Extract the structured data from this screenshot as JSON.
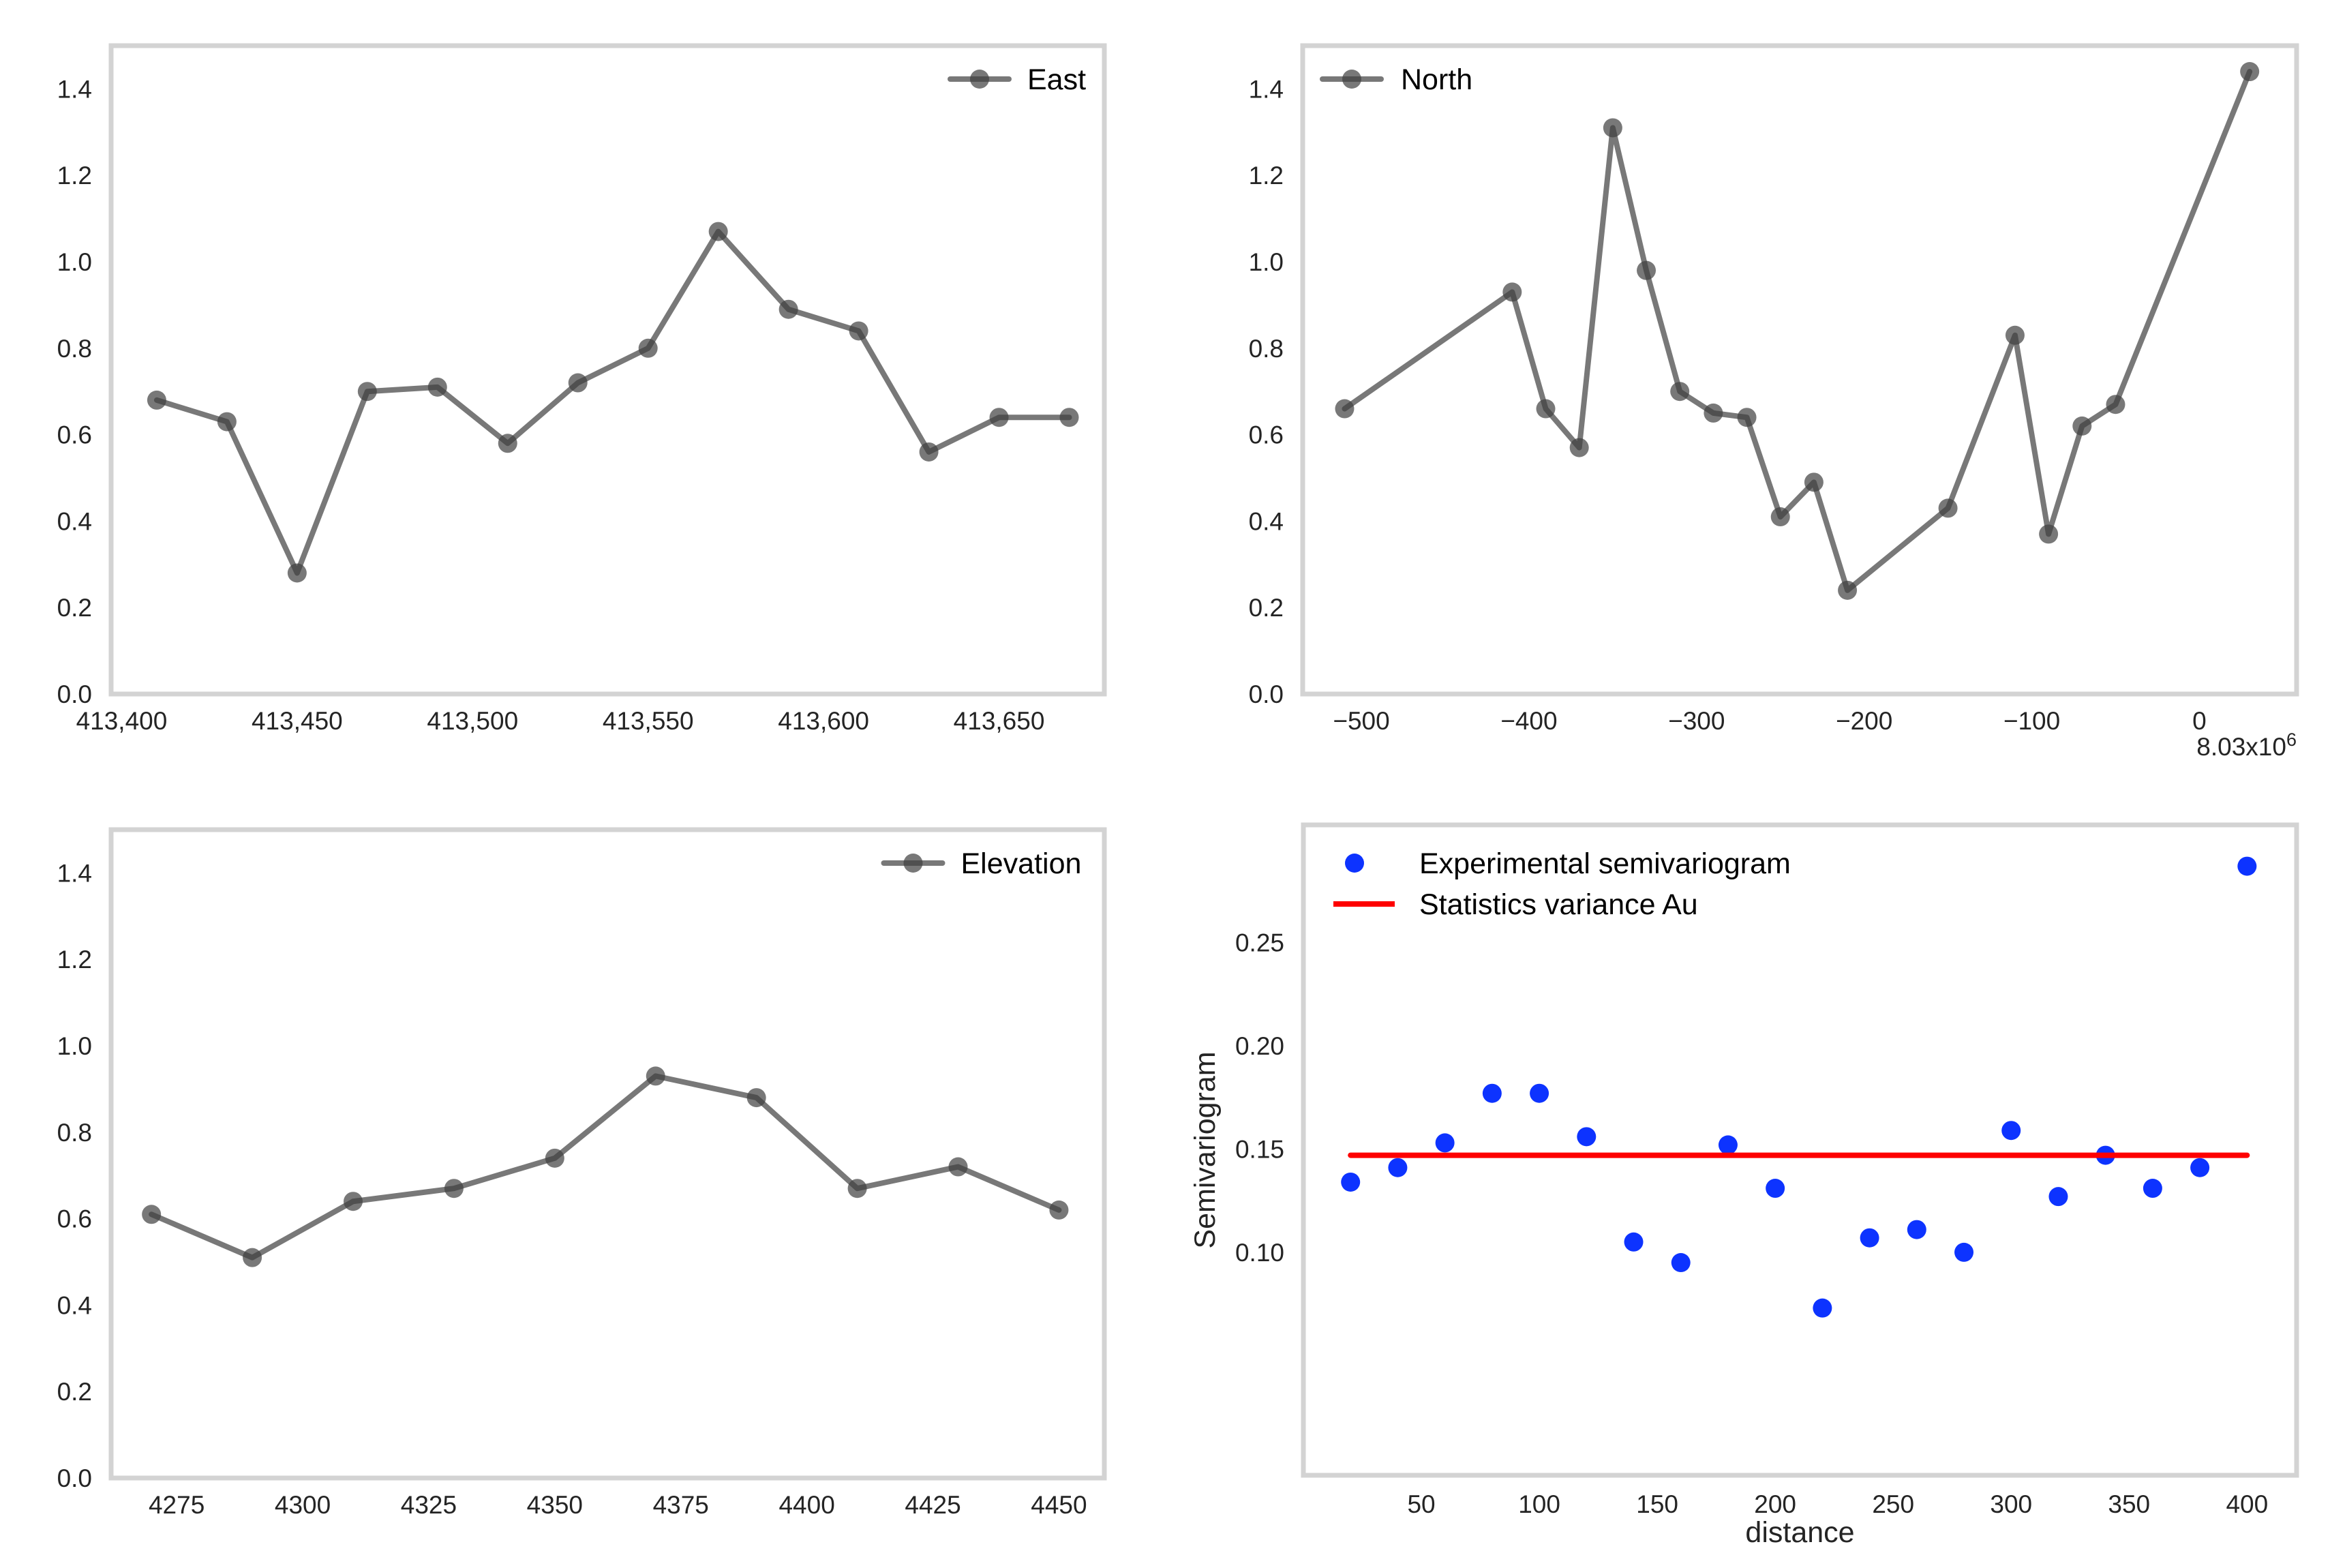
{
  "page": {
    "background": "#ffffff",
    "title": "",
    "grid_rows": 2,
    "grid_cols": 2
  },
  "styles": {
    "plot_border_color": "#d3d3d3",
    "tick_label_color": "#242424",
    "axis_label_color": "#242424",
    "legend_text_color": "#000000",
    "gray_series_color": "#3f3f3f",
    "scatter_point_color": "#0d33ff",
    "variance_line_color": "#fe0000"
  },
  "chart_data": [
    {
      "id": "east",
      "type": "line",
      "title": "",
      "xlabel": "",
      "ylabel": "",
      "legend": [
        {
          "label": "East",
          "swatch": "line-marker",
          "color": "#3f3f3f"
        }
      ],
      "legend_position": "top-right",
      "grid": false,
      "xlim": [
        413397,
        413680
      ],
      "ylim": [
        0,
        1.5
      ],
      "xticks": {
        "values": [
          413400,
          413450,
          413500,
          413550,
          413600,
          413650
        ],
        "labels": [
          "413,400",
          "413,450",
          "413,500",
          "413,550",
          "413,600",
          "413,650"
        ]
      },
      "yticks": {
        "values": [
          0.0,
          0.2,
          0.4,
          0.6,
          0.8,
          1.0,
          1.2,
          1.4
        ],
        "labels": [
          "0.0",
          "0.2",
          "0.4",
          "0.6",
          "0.8",
          "1.0",
          "1.2",
          "1.4"
        ]
      },
      "x": [
        413410,
        413430,
        413450,
        413470,
        413490,
        413510,
        413530,
        413550,
        413570,
        413590,
        413610,
        413630,
        413650,
        413670
      ],
      "y": [
        0.68,
        0.63,
        0.28,
        0.7,
        0.71,
        0.58,
        0.72,
        0.8,
        1.07,
        0.89,
        0.84,
        0.56,
        0.64,
        0.64
      ]
    },
    {
      "id": "north",
      "type": "line",
      "title": "",
      "xlabel": "",
      "ylabel": "",
      "legend": [
        {
          "label": "North",
          "swatch": "line-marker",
          "color": "#3f3f3f"
        }
      ],
      "legend_position": "top-left",
      "grid": false,
      "x_axis_offset": {
        "text": "8.03x10",
        "exponent": "6"
      },
      "xlim": [
        -535,
        58
      ],
      "ylim": [
        0,
        1.5
      ],
      "xticks": {
        "values": [
          -500,
          -400,
          -300,
          -200,
          -100,
          0
        ],
        "labels": [
          "−500",
          "−400",
          "−300",
          "−200",
          "−100",
          "0"
        ]
      },
      "yticks": {
        "values": [
          0.0,
          0.2,
          0.4,
          0.6,
          0.8,
          1.0,
          1.2,
          1.4
        ],
        "labels": [
          "0.0",
          "0.2",
          "0.4",
          "0.6",
          "0.8",
          "1.0",
          "1.2",
          "1.4"
        ]
      },
      "x": [
        -510,
        -410,
        -390,
        -370,
        -350,
        -330,
        -310,
        -290,
        -270,
        -250,
        -230,
        -210,
        -150,
        -110,
        -90,
        -70,
        -50,
        30
      ],
      "y": [
        0.66,
        0.93,
        0.66,
        0.57,
        1.31,
        0.98,
        0.7,
        0.65,
        0.64,
        0.41,
        0.49,
        0.24,
        0.43,
        0.83,
        0.37,
        0.62,
        0.67,
        1.44
      ]
    },
    {
      "id": "elevation",
      "type": "line",
      "title": "",
      "xlabel": "",
      "ylabel": "",
      "legend": [
        {
          "label": "Elevation",
          "swatch": "line-marker",
          "color": "#3f3f3f"
        }
      ],
      "legend_position": "top-right",
      "grid": false,
      "xlim": [
        4262,
        4459
      ],
      "ylim": [
        0,
        1.5
      ],
      "xticks": {
        "values": [
          4275,
          4300,
          4325,
          4350,
          4375,
          4400,
          4425,
          4450
        ],
        "labels": [
          "4275",
          "4300",
          "4325",
          "4350",
          "4375",
          "4400",
          "4425",
          "4450"
        ]
      },
      "yticks": {
        "values": [
          0.0,
          0.2,
          0.4,
          0.6,
          0.8,
          1.0,
          1.2,
          1.4
        ],
        "labels": [
          "0.0",
          "0.2",
          "0.4",
          "0.6",
          "0.8",
          "1.0",
          "1.2",
          "1.4"
        ]
      },
      "x": [
        4270,
        4290,
        4310,
        4330,
        4350,
        4370,
        4390,
        4410,
        4430,
        4450
      ],
      "y": [
        0.61,
        0.51,
        0.64,
        0.67,
        0.74,
        0.93,
        0.88,
        0.67,
        0.72,
        0.62
      ]
    },
    {
      "id": "semivariogram",
      "type": "scatter",
      "title": "",
      "xlabel": "distance",
      "ylabel": "Semivariogram",
      "legend": [
        {
          "label": "Experimental semivariogram",
          "swatch": "dot",
          "color": "#0d33ff"
        },
        {
          "label": "Statistics variance Au",
          "swatch": "line",
          "color": "#fe0000"
        }
      ],
      "legend_position": "top-left",
      "grid": false,
      "xlim": [
        0,
        421
      ],
      "ylim": [
        -0.008,
        0.307
      ],
      "xticks": {
        "values": [
          50,
          100,
          150,
          200,
          250,
          300,
          350,
          400
        ],
        "labels": [
          "50",
          "100",
          "150",
          "200",
          "250",
          "300",
          "350",
          "400"
        ]
      },
      "yticks": {
        "values": [
          0.1,
          0.15,
          0.2,
          0.25
        ],
        "labels": [
          "0.10",
          "0.15",
          "0.20",
          "0.25"
        ]
      },
      "series": [
        {
          "name": "Experimental semivariogram",
          "type": "scatter",
          "color": "#0d33ff",
          "x": [
            20,
            40,
            60,
            80,
            100,
            120,
            140,
            160,
            180,
            200,
            220,
            240,
            260,
            280,
            300,
            320,
            340,
            360,
            380,
            400
          ],
          "y": [
            0.134,
            0.141,
            0.153,
            0.177,
            0.177,
            0.156,
            0.105,
            0.095,
            0.152,
            0.131,
            0.073,
            0.107,
            0.111,
            0.1,
            0.159,
            0.127,
            0.147,
            0.131,
            0.141,
            0.287
          ]
        },
        {
          "name": "Statistics variance Au",
          "type": "line",
          "color": "#fe0000",
          "x": [
            20,
            400
          ],
          "y": [
            0.147,
            0.147
          ]
        }
      ]
    }
  ]
}
